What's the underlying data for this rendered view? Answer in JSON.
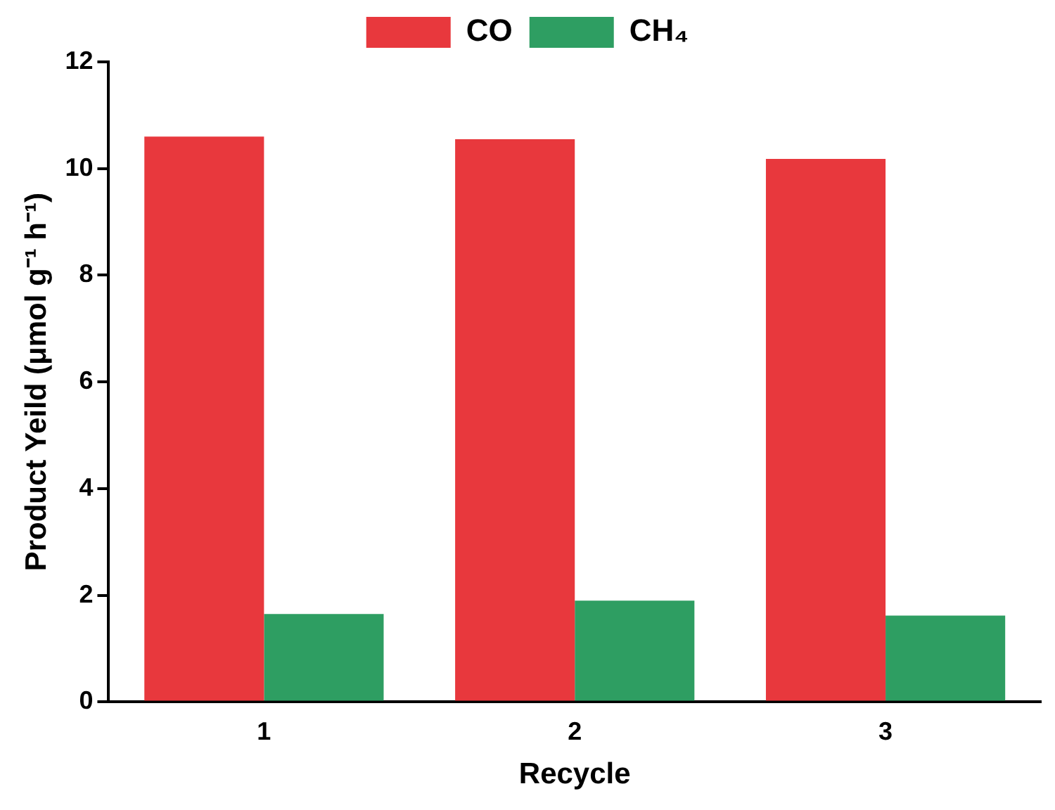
{
  "chart_data": {
    "type": "bar",
    "xlabel": "Recycle",
    "ylabel": "Product Yeild (μmol g⁻¹ h⁻¹)",
    "categories": [
      "1",
      "2",
      "3"
    ],
    "series": [
      {
        "name": "CO",
        "color": "#e8383d",
        "values": [
          10.6,
          10.55,
          10.18
        ]
      },
      {
        "name": "CH₄",
        "color": "#2e9e62",
        "values": [
          1.65,
          1.9,
          1.62
        ]
      }
    ],
    "ylim": [
      0,
      12
    ],
    "yticks": [
      0,
      2,
      4,
      6,
      8,
      10,
      12
    ],
    "grid": false,
    "legend": "top"
  }
}
